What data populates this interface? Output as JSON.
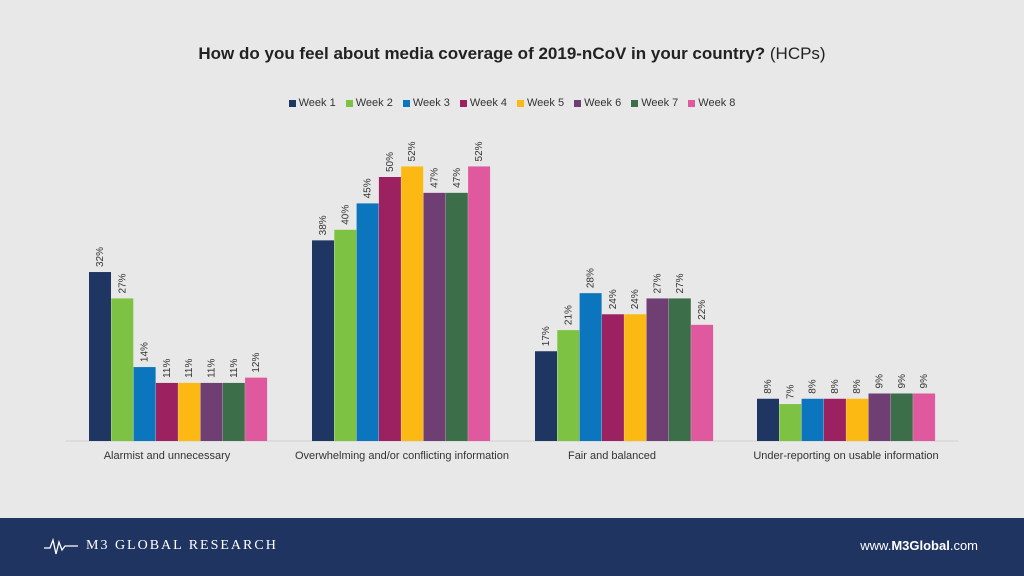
{
  "title_bold": "How do you feel about media coverage of 2019-nCoV in your country?",
  "title_suffix": " (HCPs)",
  "colors": [
    "#1f3562",
    "#7dc242",
    "#0b75bd",
    "#9b2160",
    "#fdb913",
    "#6f3f73",
    "#3c6e4a",
    "#e0589e"
  ],
  "footer": {
    "brand": "M3 GLOBAL RESEARCH",
    "site_prefix": "www.",
    "site_bold": "M3Global",
    "site_suffix": ".com"
  },
  "chart_data": {
    "type": "bar",
    "title": "How do you feel about media coverage of 2019-nCoV in your country? (HCPs)",
    "legend_position": "top",
    "categories": [
      "Alarmist and unnecessary",
      "Overwhelming and/or conflicting information",
      "Fair and balanced",
      "Under-reporting on usable information"
    ],
    "series": [
      {
        "name": "Week 1",
        "values": [
          32,
          38,
          17,
          8
        ]
      },
      {
        "name": "Week 2",
        "values": [
          27,
          40,
          21,
          7
        ]
      },
      {
        "name": "Week 3",
        "values": [
          14,
          45,
          28,
          8
        ]
      },
      {
        "name": "Week 4",
        "values": [
          11,
          50,
          24,
          8
        ]
      },
      {
        "name": "Week 5",
        "values": [
          11,
          52,
          24,
          8
        ]
      },
      {
        "name": "Week 6",
        "values": [
          11,
          47,
          27,
          9
        ]
      },
      {
        "name": "Week 7",
        "values": [
          11,
          47,
          27,
          9
        ]
      },
      {
        "name": "Week 8",
        "values": [
          12,
          52,
          22,
          9
        ]
      }
    ],
    "value_suffix": "%",
    "ylim": [
      0,
      52
    ]
  }
}
